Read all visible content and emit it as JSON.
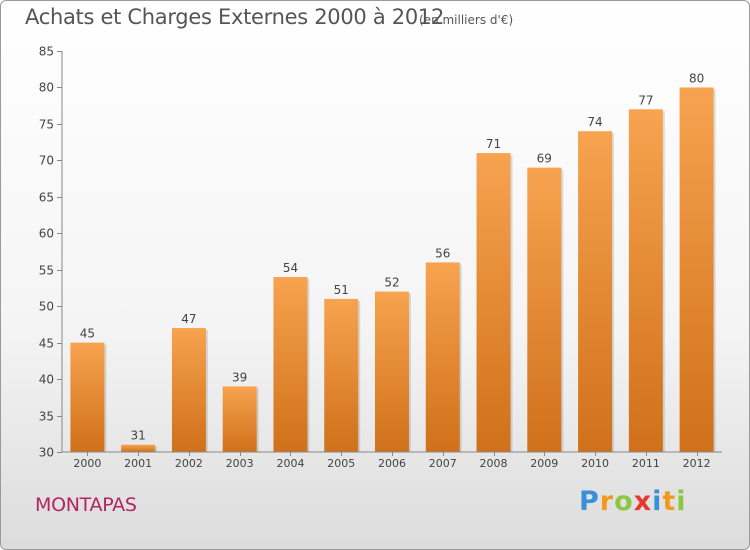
{
  "title": "Achats et Charges Externes 2000 à 2012",
  "subtitle": "(en milliers d'€)",
  "commune": "MONTAPAS",
  "logo": {
    "letters": [
      {
        "ch": "P",
        "color": "#3a8fd6"
      },
      {
        "ch": "r",
        "color": "#f09a1e"
      },
      {
        "ch": "o",
        "color": "#8dc63f"
      },
      {
        "ch": "x",
        "color": "#e8392f"
      },
      {
        "ch": "i",
        "color": "#3a8fd6"
      },
      {
        "ch": "t",
        "color": "#f09a1e"
      },
      {
        "ch": "i",
        "color": "#8dc63f"
      }
    ]
  },
  "chart_data": {
    "type": "bar",
    "categories": [
      "2000",
      "2001",
      "2002",
      "2003",
      "2004",
      "2005",
      "2006",
      "2007",
      "2008",
      "2009",
      "2010",
      "2011",
      "2012"
    ],
    "values": [
      45,
      31,
      47,
      39,
      54,
      51,
      52,
      56,
      71,
      69,
      74,
      77,
      80
    ],
    "ylim": [
      30,
      85
    ],
    "yticks": [
      30,
      35,
      40,
      45,
      50,
      55,
      60,
      65,
      70,
      75,
      80,
      85
    ],
    "grid": false,
    "bar_color_top": "#f7a34f",
    "bar_color_bottom": "#d0701a"
  }
}
